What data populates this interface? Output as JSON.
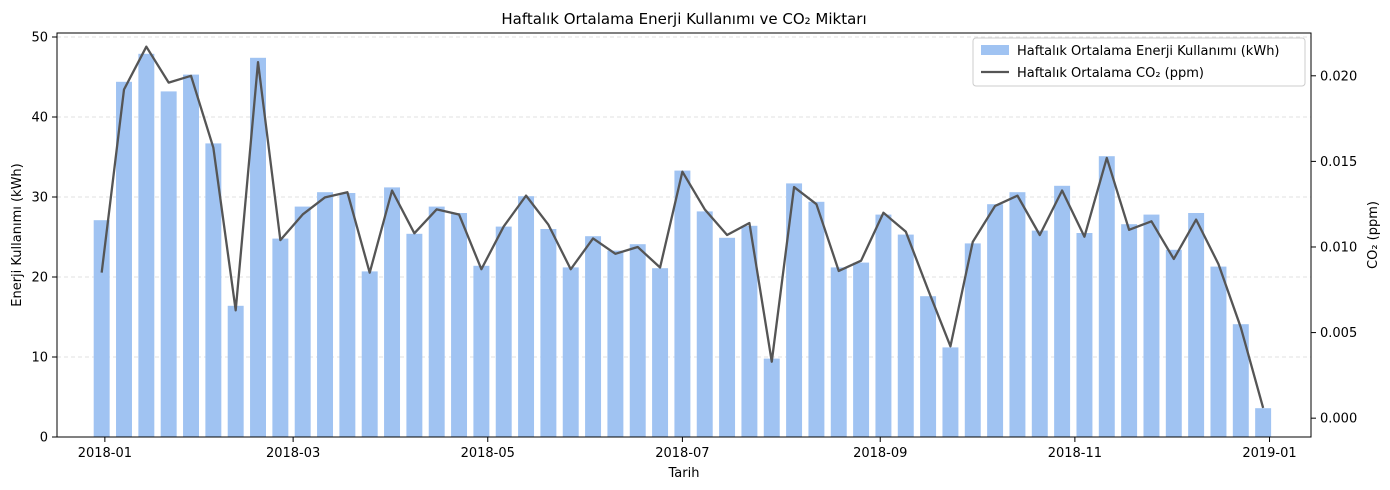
{
  "chart_data": {
    "type": "bar",
    "title": "Haftalık Ortalama Enerji Kullanımı ve CO₂ Miktarı",
    "xlabel": "Tarih",
    "ylabel": "Enerji Kullanımı (kWh)",
    "y2label": "CO₂ (ppm)",
    "ylim": [
      0,
      50.5
    ],
    "y2lim": [
      -0.0011,
      0.0225
    ],
    "yticks": [
      0,
      10,
      20,
      30,
      40,
      50
    ],
    "y2ticks": [
      0.0,
      0.005,
      0.01,
      0.015,
      0.02
    ],
    "y2tick_labels": [
      "0.000",
      "0.005",
      "0.010",
      "0.015",
      "0.020"
    ],
    "xlim": [
      "2017-12-17",
      "2019-01-14"
    ],
    "xticks": [
      "2018-01-01",
      "2018-03-01",
      "2018-05-01",
      "2018-07-01",
      "2018-09-01",
      "2018-11-01",
      "2019-01-01"
    ],
    "xtick_labels": [
      "2018-01",
      "2018-03",
      "2018-05",
      "2018-07",
      "2018-09",
      "2018-11",
      "2019-01"
    ],
    "grid": "y-dashed",
    "legend": "top-right",
    "colors": {
      "bars": "#a0c3f2",
      "line": "#555555"
    },
    "dates": [
      "2017-12-31",
      "2018-01-07",
      "2018-01-14",
      "2018-01-21",
      "2018-01-28",
      "2018-02-04",
      "2018-02-11",
      "2018-02-18",
      "2018-02-25",
      "2018-03-04",
      "2018-03-11",
      "2018-03-18",
      "2018-03-25",
      "2018-04-01",
      "2018-04-08",
      "2018-04-15",
      "2018-04-22",
      "2018-04-29",
      "2018-05-06",
      "2018-05-13",
      "2018-05-20",
      "2018-05-27",
      "2018-06-03",
      "2018-06-10",
      "2018-06-17",
      "2018-06-24",
      "2018-07-01",
      "2018-07-08",
      "2018-07-15",
      "2018-07-22",
      "2018-07-29",
      "2018-08-05",
      "2018-08-12",
      "2018-08-19",
      "2018-08-26",
      "2018-09-02",
      "2018-09-09",
      "2018-09-16",
      "2018-09-23",
      "2018-09-30",
      "2018-10-07",
      "2018-10-14",
      "2018-10-21",
      "2018-10-28",
      "2018-11-04",
      "2018-11-11",
      "2018-11-18",
      "2018-11-25",
      "2018-12-02",
      "2018-12-09",
      "2018-12-16",
      "2018-12-23",
      "2018-12-30"
    ],
    "series": [
      {
        "name": "Haftalık Ortalama Enerji Kullanımı (kWh)",
        "type": "bar",
        "axis": "left",
        "values": [
          27.1,
          44.4,
          47.9,
          43.2,
          45.3,
          36.7,
          16.4,
          47.4,
          24.8,
          28.8,
          30.6,
          30.5,
          20.7,
          31.2,
          25.4,
          28.8,
          28.0,
          21.4,
          26.3,
          30.1,
          26.0,
          21.2,
          25.1,
          23.3,
          24.1,
          21.1,
          33.3,
          28.2,
          24.9,
          26.4,
          9.8,
          31.7,
          29.4,
          21.2,
          21.8,
          27.8,
          25.3,
          17.6,
          11.2,
          24.2,
          29.1,
          30.6,
          25.8,
          31.4,
          25.5,
          35.1,
          26.6,
          27.8,
          23.4,
          28.0,
          21.3,
          14.1,
          3.6
        ]
      },
      {
        "name": "Haftalık Ortalama CO₂ (ppm)",
        "type": "line",
        "axis": "right",
        "values": [
          0.0085,
          0.0192,
          0.0217,
          0.0196,
          0.02,
          0.0158,
          0.0063,
          0.0208,
          0.0104,
          0.0119,
          0.0129,
          0.0132,
          0.0085,
          0.0133,
          0.0108,
          0.0122,
          0.0119,
          0.0087,
          0.0112,
          0.013,
          0.0113,
          0.0087,
          0.0105,
          0.0096,
          0.01,
          0.0088,
          0.0144,
          0.0122,
          0.0107,
          0.0114,
          0.0033,
          0.0135,
          0.0125,
          0.0086,
          0.0092,
          0.012,
          0.0109,
          0.0075,
          0.0042,
          0.0103,
          0.0124,
          0.013,
          0.0107,
          0.0133,
          0.0106,
          0.0152,
          0.011,
          0.0115,
          0.0093,
          0.0116,
          0.009,
          0.0053,
          0.0006
        ]
      }
    ]
  }
}
